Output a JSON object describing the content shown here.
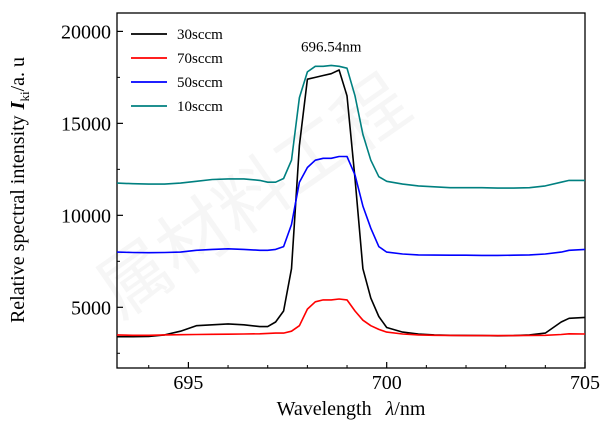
{
  "chart_data": {
    "type": "line",
    "xlabel": "Wavelength",
    "xlabel_symbol": "λ",
    "xlabel_unit": "/nm",
    "ylabel_main": "Relative spectral intensity",
    "ylabel_symbol": "I",
    "ylabel_subscript": "ki",
    "ylabel_unit": "/a. u",
    "xlim": [
      693.2,
      705
    ],
    "ylim": [
      1700,
      21000
    ],
    "x_ticks": [
      695,
      700,
      705
    ],
    "y_ticks": [
      5000,
      10000,
      15000,
      20000
    ],
    "grid": false,
    "legend_position": "top-left",
    "annotations": [
      {
        "text": "696.54nm",
        "x": 698.6,
        "y": 18900
      }
    ],
    "x": [
      693.2,
      693.6,
      694.0,
      694.4,
      694.8,
      695.2,
      695.6,
      696.0,
      696.4,
      696.8,
      697.0,
      697.2,
      697.4,
      697.6,
      697.8,
      698.0,
      698.2,
      698.4,
      698.6,
      698.8,
      699.0,
      699.2,
      699.4,
      699.6,
      699.8,
      700.0,
      700.4,
      700.8,
      701.2,
      701.6,
      702.0,
      702.4,
      702.8,
      703.2,
      703.6,
      704.0,
      704.4,
      704.6,
      705.0
    ],
    "series": [
      {
        "name": "30sccm",
        "color": "#000000",
        "values": [
          3400,
          3400,
          3420,
          3500,
          3700,
          4000,
          4050,
          4100,
          4050,
          3950,
          3950,
          4200,
          4800,
          7100,
          13800,
          17400,
          17500,
          17600,
          17700,
          17900,
          16500,
          12000,
          7100,
          5500,
          4500,
          3900,
          3650,
          3550,
          3500,
          3480,
          3470,
          3460,
          3450,
          3460,
          3500,
          3600,
          4200,
          4400,
          4450
        ]
      },
      {
        "name": "70sccm",
        "color": "#ff0000",
        "values": [
          3500,
          3480,
          3480,
          3500,
          3510,
          3520,
          3530,
          3540,
          3550,
          3560,
          3580,
          3600,
          3600,
          3700,
          4000,
          4900,
          5300,
          5400,
          5400,
          5450,
          5400,
          4800,
          4300,
          4000,
          3800,
          3650,
          3550,
          3500,
          3480,
          3470,
          3460,
          3460,
          3460,
          3460,
          3470,
          3480,
          3520,
          3560,
          3550
        ]
      },
      {
        "name": "50sccm",
        "color": "#0000ff",
        "values": [
          8000,
          7980,
          7970,
          7980,
          8000,
          8100,
          8150,
          8180,
          8150,
          8100,
          8100,
          8150,
          8300,
          9500,
          11800,
          12600,
          13000,
          13100,
          13100,
          13200,
          13200,
          12200,
          10500,
          9300,
          8300,
          8000,
          7900,
          7850,
          7840,
          7830,
          7830,
          7820,
          7820,
          7830,
          7850,
          7900,
          8000,
          8100,
          8150
        ]
      },
      {
        "name": "10sccm",
        "color": "#008080",
        "values": [
          11750,
          11720,
          11700,
          11700,
          11750,
          11850,
          11950,
          11980,
          11980,
          11900,
          11800,
          11800,
          12000,
          13000,
          16400,
          17800,
          18100,
          18100,
          18150,
          18100,
          18000,
          16500,
          14400,
          13000,
          12100,
          11850,
          11700,
          11600,
          11550,
          11500,
          11500,
          11500,
          11480,
          11480,
          11500,
          11600,
          11800,
          11900,
          11900
        ]
      }
    ]
  }
}
